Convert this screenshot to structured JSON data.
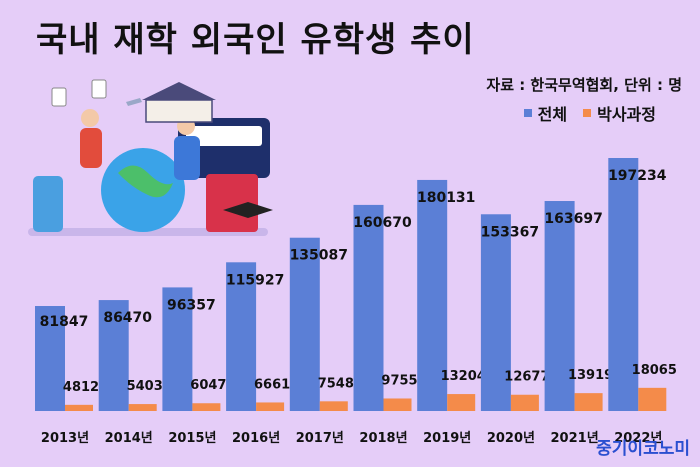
{
  "title": "국내 재학 외국인 유학생 추이",
  "source": "자료 : 한국무역협회, 단위 : 명",
  "watermark": "중기이코노미",
  "colors": {
    "total": "#5b7fd6",
    "phd": "#f48b4a",
    "background": "#e5cdf8"
  },
  "chart_data": {
    "type": "bar",
    "categories": [
      "2013년",
      "2014년",
      "2015년",
      "2016년",
      "2017년",
      "2018년",
      "2019년",
      "2020년",
      "2021년",
      "2022년"
    ],
    "series": [
      {
        "name": "전체",
        "values": [
          81847,
          86470,
          96357,
          115927,
          135087,
          160670,
          180131,
          153367,
          163697,
          197234
        ]
      },
      {
        "name": "박사과정",
        "values": [
          4812,
          5403,
          6047,
          6661,
          7548,
          9755,
          13204,
          12677,
          13919,
          18065
        ]
      }
    ],
    "title": "국내 재학 외국인 유학생 추이",
    "xlabel": "",
    "ylabel": "",
    "ylim": [
      0,
      205000
    ],
    "grid": false,
    "legend": "top-right",
    "data_labels": true
  }
}
